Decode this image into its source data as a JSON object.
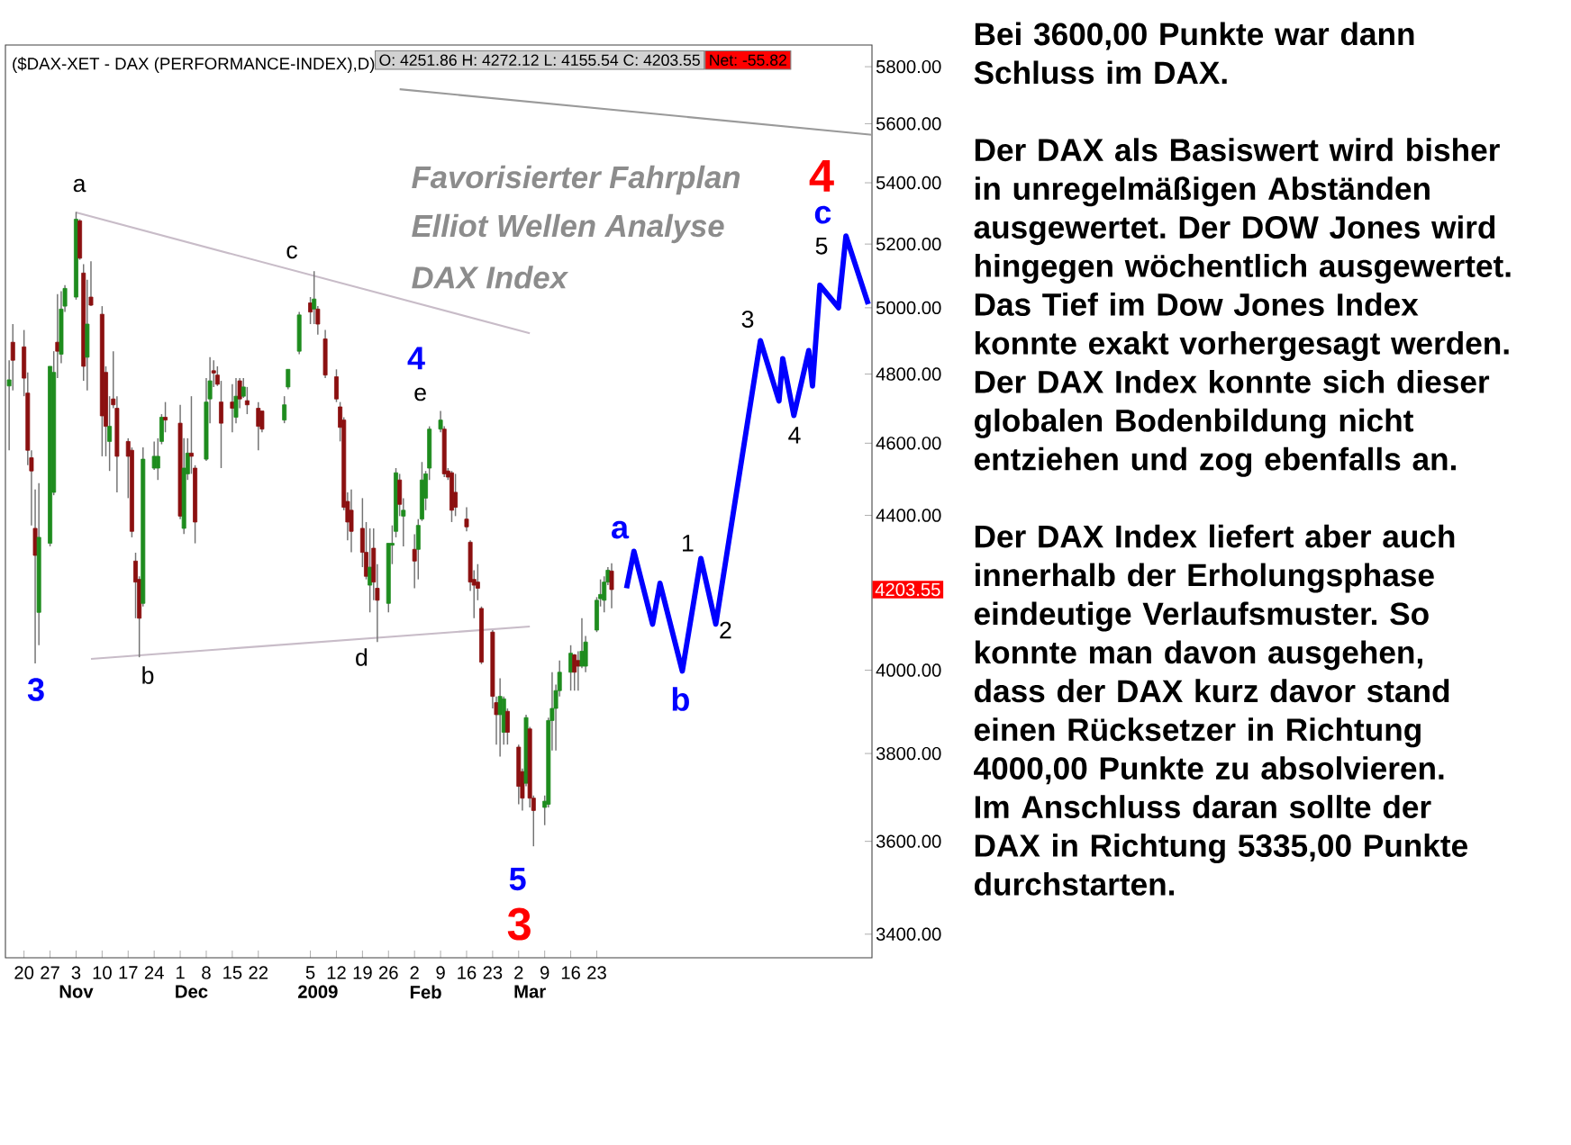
{
  "chart_data": {
    "type": "candlestick",
    "title": "($DAX-XET - DAX (PERFORMANCE-INDEX),D)",
    "log": true,
    "xlim": [
      "2008-10-15",
      "2009-06-05"
    ],
    "ylim": [
      3351,
      5878
    ],
    "xticks": [
      {
        "value": "2008-10-20",
        "label": "20"
      },
      {
        "value": "2008-10-27",
        "label": "27"
      },
      {
        "value": "2008-11-03",
        "label": "3"
      },
      {
        "value": "2008-11-10",
        "label": "10"
      },
      {
        "value": "2008-11-17",
        "label": "17"
      },
      {
        "value": "2008-11-24",
        "label": "24"
      },
      {
        "value": "2008-12-01",
        "label": "1"
      },
      {
        "value": "2008-12-08",
        "label": "8"
      },
      {
        "value": "2008-12-15",
        "label": "15"
      },
      {
        "value": "2008-12-22",
        "label": "22"
      },
      {
        "value": "2009-01-05",
        "label": "5"
      },
      {
        "value": "2009-01-12",
        "label": "12"
      },
      {
        "value": "2009-01-19",
        "label": "19"
      },
      {
        "value": "2009-01-26",
        "label": "26"
      },
      {
        "value": "2009-02-02",
        "label": "2"
      },
      {
        "value": "2009-02-09",
        "label": "9"
      },
      {
        "value": "2009-02-16",
        "label": "16"
      },
      {
        "value": "2009-02-23",
        "label": "23"
      },
      {
        "value": "2009-03-02",
        "label": "2"
      },
      {
        "value": "2009-03-09",
        "label": "9"
      },
      {
        "value": "2009-03-16",
        "label": "16"
      },
      {
        "value": "2009-03-23",
        "label": "23"
      }
    ],
    "x2lim": [
      "2008-10-15",
      "2009-06-05"
    ],
    "x2ticks": [
      {
        "value": "2008-11-03",
        "label": "Nov"
      },
      {
        "value": "2008-12-04",
        "label": "Dec"
      },
      {
        "value": "2009-01-07",
        "label": "2009"
      },
      {
        "value": "2009-02-05",
        "label": "Feb"
      },
      {
        "value": "2009-03-05",
        "label": "Mar"
      }
    ],
    "yticks": [
      {
        "value": 3400,
        "label": "3400.00"
      },
      {
        "value": 3600,
        "label": "3600.00"
      },
      {
        "value": 3800,
        "label": "3800.00"
      },
      {
        "value": 4000,
        "label": "4000.00"
      },
      {
        "value": 4400,
        "label": "4400.00"
      },
      {
        "value": 4600,
        "label": "4600.00"
      },
      {
        "value": 4800,
        "label": "4800.00"
      },
      {
        "value": 5000,
        "label": "5000.00"
      },
      {
        "value": 5200,
        "label": "5200.00"
      },
      {
        "value": 5400,
        "label": "5400.00"
      },
      {
        "value": 5600,
        "label": "5600.00"
      },
      {
        "value": 5800,
        "label": "5800.00"
      }
    ],
    "x": [
      "2008-10-16",
      "2008-10-17",
      "2008-10-20",
      "2008-10-21",
      "2008-10-22",
      "2008-10-23",
      "2008-10-24",
      "2008-10-27",
      "2008-10-28",
      "2008-10-29",
      "2008-10-30",
      "2008-10-31",
      "2008-11-03",
      "2008-11-04",
      "2008-11-05",
      "2008-11-06",
      "2008-11-07",
      "2008-11-10",
      "2008-11-11",
      "2008-11-12",
      "2008-11-13",
      "2008-11-14",
      "2008-11-17",
      "2008-11-18",
      "2008-11-19",
      "2008-11-20",
      "2008-11-21",
      "2008-11-24",
      "2008-11-25",
      "2008-11-26",
      "2008-11-27",
      "2008-12-01",
      "2008-12-02",
      "2008-12-03",
      "2008-12-04",
      "2008-12-05",
      "2008-12-08",
      "2008-12-09",
      "2008-12-10",
      "2008-12-11",
      "2008-12-12",
      "2008-12-15",
      "2008-12-16",
      "2008-12-17",
      "2008-12-18",
      "2008-12-19",
      "2008-12-22",
      "2008-12-23",
      "2008-12-29",
      "2008-12-30",
      "2009-01-02",
      "2009-01-05",
      "2009-01-06",
      "2009-01-07",
      "2009-01-09",
      "2009-01-12",
      "2009-01-13",
      "2009-01-14",
      "2009-01-15",
      "2009-01-16",
      "2009-01-19",
      "2009-01-20",
      "2009-01-21",
      "2009-01-22",
      "2009-01-23",
      "2009-01-26",
      "2009-01-27",
      "2009-01-28",
      "2009-01-29",
      "2009-01-30",
      "2009-02-02",
      "2009-02-03",
      "2009-02-04",
      "2009-02-05",
      "2009-02-06",
      "2009-02-09",
      "2009-02-10",
      "2009-02-11",
      "2009-02-12",
      "2009-02-13",
      "2009-02-16",
      "2009-02-17",
      "2009-02-18",
      "2009-02-19",
      "2009-02-20",
      "2009-02-23",
      "2009-02-24",
      "2009-02-25",
      "2009-02-26",
      "2009-02-27",
      "2009-03-02",
      "2009-03-03",
      "2009-03-04",
      "2009-03-05",
      "2009-03-06",
      "2009-03-09",
      "2009-03-10",
      "2009-03-11",
      "2009-03-12",
      "2009-03-13",
      "2009-03-16",
      "2009-03-17",
      "2009-03-18",
      "2009-03-19",
      "2009-03-20",
      "2009-03-23",
      "2009-03-24",
      "2009-03-25",
      "2009-03-26",
      "2009-03-27"
    ],
    "ohlc": [
      [
        4765,
        4841,
        4580,
        4783
      ],
      [
        4895,
        4950,
        4752,
        4841
      ],
      [
        4881,
        4932,
        4735,
        4788
      ],
      [
        4744,
        4805,
        4538,
        4580
      ],
      [
        4559,
        4580,
        4373,
        4522
      ],
      [
        4365,
        4471,
        4017,
        4293
      ],
      [
        4145,
        4488,
        4062,
        4341
      ],
      [
        4325,
        4823,
        4317,
        4823
      ],
      [
        4463,
        4868,
        4455,
        4805
      ],
      [
        4895,
        5042,
        4788,
        4868
      ],
      [
        4859,
        5051,
        4832,
        4996
      ],
      [
        5005,
        5070,
        4987,
        5060
      ],
      [
        5033,
        5304,
        5025,
        5280
      ],
      [
        5275,
        5280,
        5150,
        5155
      ],
      [
        5108,
        5136,
        4780,
        4823
      ],
      [
        4850,
        5087,
        4752,
        4950
      ],
      [
        5033,
        5145,
        5005,
        5008
      ],
      [
        4980,
        5005,
        4563,
        4678
      ],
      [
        4805,
        4823,
        4563,
        4648
      ],
      [
        4605,
        4735,
        4522,
        4648
      ],
      [
        4727,
        4868,
        4700,
        4710
      ],
      [
        4700,
        4735,
        4463,
        4563
      ],
      [
        4605,
        4614,
        4447,
        4563
      ],
      [
        4580,
        4588,
        4341,
        4357
      ],
      [
        4278,
        4300,
        4130,
        4223
      ],
      [
        4230,
        4238,
        4032,
        4130
      ],
      [
        4168,
        4588,
        4160,
        4555
      ],
      [
        4530,
        4605,
        4525,
        4563
      ],
      [
        4530,
        4614,
        4497,
        4563
      ],
      [
        4605,
        4683,
        4597,
        4674
      ],
      [
        4674,
        4718,
        4631,
        4666
      ],
      [
        4657,
        4710,
        4390,
        4398
      ],
      [
        4365,
        4614,
        4350,
        4530
      ],
      [
        4514,
        4614,
        4497,
        4572
      ],
      [
        4572,
        4735,
        4514,
        4563
      ],
      [
        4530,
        4538,
        4325,
        4382
      ],
      [
        4555,
        4788,
        4550,
        4718
      ],
      [
        4727,
        4850,
        4657,
        4780
      ],
      [
        4810,
        4841,
        4762,
        4803
      ],
      [
        4797,
        4823,
        4765,
        4770
      ],
      [
        4718,
        4780,
        4530,
        4657
      ],
      [
        4718,
        4770,
        4631,
        4700
      ],
      [
        4674,
        4788,
        4657,
        4735
      ],
      [
        4780,
        4788,
        4700,
        4727
      ],
      [
        4735,
        4788,
        4730,
        4762
      ],
      [
        4722,
        4762,
        4683,
        4710
      ],
      [
        4700,
        4718,
        4580,
        4648
      ],
      [
        4692,
        4692,
        4631,
        4640
      ],
      [
        4666,
        4735,
        4657,
        4710
      ],
      [
        4762,
        4814,
        4755,
        4814
      ],
      [
        4868,
        4987,
        4859,
        4978
      ],
      [
        5015,
        5033,
        4950,
        4987
      ],
      [
        4996,
        5114,
        4950,
        5027
      ],
      [
        4996,
        5005,
        4918,
        4950
      ],
      [
        4905,
        4932,
        4788,
        4797
      ],
      [
        4792,
        4814,
        4718,
        4727
      ],
      [
        4704,
        4718,
        4605,
        4645
      ],
      [
        4666,
        4674,
        4414,
        4422
      ],
      [
        4438,
        4463,
        4333,
        4382
      ],
      [
        4414,
        4471,
        4301,
        4357
      ],
      [
        4365,
        4447,
        4262,
        4301
      ],
      [
        4301,
        4382,
        4230,
        4238
      ],
      [
        4215,
        4365,
        4145,
        4262
      ],
      [
        4312,
        4365,
        4176,
        4223
      ],
      [
        4207,
        4270,
        4070,
        4176
      ],
      [
        4168,
        4325,
        4145,
        4325
      ],
      [
        4320,
        4373,
        4270,
        4325
      ],
      [
        4357,
        4530,
        4341,
        4517
      ],
      [
        4497,
        4514,
        4398,
        4430
      ],
      [
        4398,
        4447,
        4317,
        4414
      ],
      [
        4309,
        4349,
        4207,
        4278
      ],
      [
        4309,
        4390,
        4230,
        4373
      ],
      [
        4390,
        4547,
        4385,
        4497
      ],
      [
        4447,
        4522,
        4414,
        4514
      ],
      [
        4530,
        4648,
        4497,
        4640
      ],
      [
        4640,
        4692,
        4631,
        4666
      ],
      [
        4640,
        4648,
        4505,
        4514
      ],
      [
        4522,
        4530,
        4497,
        4505
      ],
      [
        4517,
        4522,
        4382,
        4414
      ],
      [
        4463,
        4514,
        4398,
        4422
      ],
      [
        4390,
        4422,
        4357,
        4369
      ],
      [
        4328,
        4333,
        4200,
        4223
      ],
      [
        4230,
        4254,
        4130,
        4215
      ],
      [
        4223,
        4270,
        4176,
        4207
      ],
      [
        4155,
        4160,
        4015,
        4020
      ],
      [
        4095,
        4100,
        3907,
        3936
      ],
      [
        3921,
        3936,
        3821,
        3892
      ],
      [
        3892,
        3980,
        3793,
        3936
      ],
      [
        3850,
        3936,
        3821,
        3930
      ],
      [
        3900,
        3907,
        3821,
        3850
      ],
      [
        3815,
        3821,
        3683,
        3724
      ],
      [
        3758,
        3765,
        3669,
        3697
      ],
      [
        3731,
        3892,
        3724,
        3885
      ],
      [
        3858,
        3863,
        3676,
        3697
      ],
      [
        3697,
        3703,
        3589,
        3669
      ],
      [
        3676,
        3703,
        3636,
        3690
      ],
      [
        3683,
        3885,
        3676,
        3878
      ],
      [
        3878,
        3995,
        3807,
        3907
      ],
      [
        3907,
        3965,
        3807,
        3950
      ],
      [
        3950,
        4024,
        3936,
        3995
      ],
      [
        3995,
        4062,
        3950,
        4042
      ],
      [
        4038,
        4040,
        3950,
        3995
      ],
      [
        4024,
        4047,
        3950,
        4010
      ],
      [
        4010,
        4130,
        4005,
        4047
      ],
      [
        4010,
        4085,
        3995,
        4070
      ],
      [
        4100,
        4184,
        4095,
        4176
      ],
      [
        4180,
        4230,
        4160,
        4191
      ],
      [
        4176,
        4238,
        4145,
        4223
      ],
      [
        4223,
        4262,
        4215,
        4254
      ],
      [
        4251.86,
        4272.12,
        4155.54,
        4203.55
      ]
    ],
    "series": [
      {
        "type": "line",
        "color": "#0000ff",
        "x": [
          "2009-03-31",
          "2009-04-02",
          "2009-04-07",
          "2009-04-09",
          "2009-04-15",
          "2009-04-20",
          "2009-04-24",
          "2009-05-06",
          "2009-05-11",
          "2009-05-12",
          "2009-05-15",
          "2009-05-19",
          "2009-05-20",
          "2009-05-22",
          "2009-05-27",
          "2009-05-29",
          "2009-06-04"
        ],
        "values": [
          4207,
          4304,
          4115,
          4220,
          3998,
          4285,
          4115,
          4900,
          4721,
          4846,
          4679,
          4870,
          4765,
          5070,
          5000,
          5226,
          5011
        ]
      },
      {
        "type": "line",
        "color": "#c8bcc8",
        "x": [
          "2008-11-03",
          "2009-03-05"
        ],
        "values": [
          5302,
          4922
        ]
      },
      {
        "type": "line",
        "color": "#c8bcc8",
        "x": [
          "2008-11-07",
          "2009-03-05"
        ],
        "values": [
          4028,
          4109
        ]
      },
      {
        "type": "line",
        "color": "#9a9a9a",
        "x": [
          "2009-01-29",
          "2009-06-05"
        ],
        "values": [
          5720,
          5562
        ]
      }
    ],
    "annotations": [
      "O: 4251.86    H: 4272.12    L: 4155.54    C: 4203.55",
      "Net: -55.82",
      "4203.55",
      "Favorisierter Fahrplan",
      "Elliot Wellen Analyse",
      "DAX Index",
      "Bei 3600,00 Punkte war dann Schluss im DAX.",
      "Der DAX als Basiswert wird bisher in unregelmäßigen Abständen ausgewertet. Der DOW Jones wird hingegen wöchentlich ausgewertet. Das Tief im Dow Jones Index konnte exakt vorhergesagt werden. Der DAX Index konnte sich dieser globalen Bodenbildung nicht entziehen und zog ebenfalls an.",
      "Der DAX Index liefert aber auch innerhalb der Erholungsphase eindeutige Verlaufsmuster. So konnte man davon ausgehen, dass der DAX kurz davor stand einen Rücksetzer in Richtung 4000,00 Punkte zu absolvieren. Im Anschluss daran sollte der DAX in Richtung 5335,00 Punkte durchstarten.",
      "a",
      "c",
      "b",
      "d",
      "e",
      "1",
      "2",
      "3",
      "4",
      "5",
      "3",
      "4",
      "5",
      "a",
      "b",
      "c",
      "3",
      "4"
    ]
  }
}
